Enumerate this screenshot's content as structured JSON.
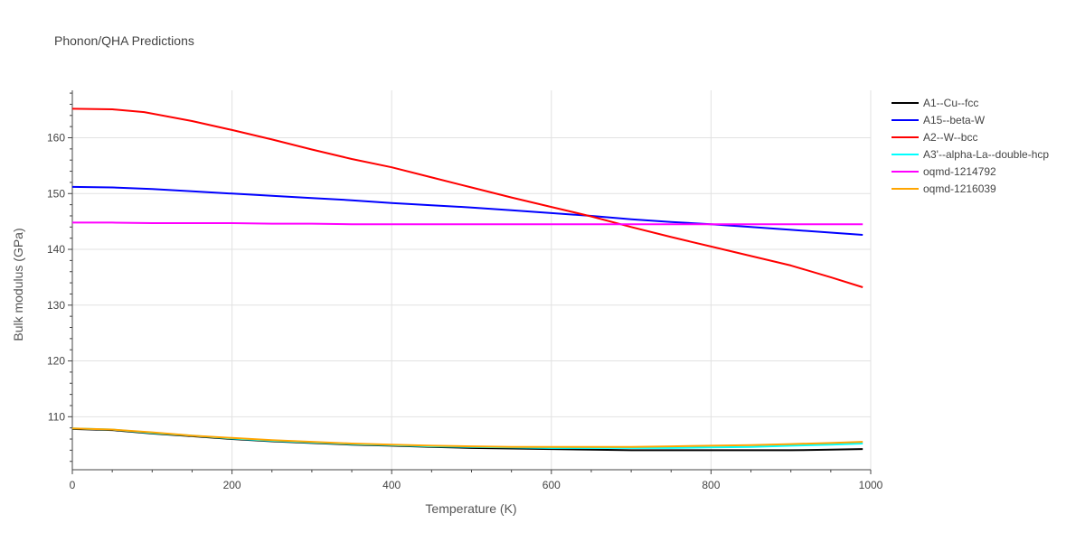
{
  "chart_data": {
    "type": "line",
    "title": "Phonon/QHA Predictions",
    "xlabel": "Temperature (K)",
    "ylabel": "Bulk modulus (GPa)",
    "xlim": [
      0,
      1000
    ],
    "ylim": [
      100.5,
      168.5
    ],
    "xticks": [
      0,
      200,
      400,
      600,
      800,
      1000
    ],
    "yticks": [
      110,
      120,
      130,
      140,
      150,
      160
    ],
    "grid": true,
    "legend_position": "top-right",
    "series": [
      {
        "name": "A1--Cu--fcc",
        "color": "#000000",
        "x": [
          0,
          50,
          100,
          150,
          200,
          250,
          300,
          350,
          400,
          450,
          500,
          550,
          600,
          650,
          700,
          750,
          800,
          850,
          900,
          950,
          990
        ],
        "y": [
          107.8,
          107.6,
          107.0,
          106.5,
          106.0,
          105.6,
          105.3,
          105.0,
          104.8,
          104.6,
          104.4,
          104.3,
          104.2,
          104.1,
          104.0,
          104.0,
          104.0,
          104.0,
          104.0,
          104.1,
          104.2
        ]
      },
      {
        "name": "A15--beta-W",
        "color": "#0000ff",
        "x": [
          0,
          50,
          100,
          150,
          200,
          250,
          300,
          350,
          400,
          450,
          500,
          550,
          600,
          650,
          700,
          750,
          800,
          850,
          900,
          950,
          990
        ],
        "y": [
          151.2,
          151.1,
          150.8,
          150.4,
          150.0,
          149.6,
          149.2,
          148.8,
          148.3,
          147.9,
          147.5,
          147.0,
          146.5,
          146.0,
          145.4,
          144.9,
          144.5,
          144.0,
          143.5,
          143.0,
          142.6
        ]
      },
      {
        "name": "A2--W--bcc",
        "color": "#ff0000",
        "x": [
          0,
          50,
          90,
          150,
          200,
          250,
          300,
          350,
          400,
          450,
          500,
          550,
          600,
          650,
          700,
          750,
          800,
          850,
          900,
          950,
          990
        ],
        "y": [
          165.2,
          165.1,
          164.6,
          163.0,
          161.4,
          159.7,
          157.9,
          156.2,
          154.7,
          152.9,
          151.1,
          149.3,
          147.6,
          145.9,
          144.0,
          142.2,
          140.5,
          138.8,
          137.1,
          135.0,
          133.2
        ]
      },
      {
        "name": "A3'--alpha-La--double-hcp",
        "color": "#00ffff",
        "x": [
          0,
          50,
          100,
          150,
          200,
          250,
          300,
          350,
          400,
          450,
          500,
          550,
          600,
          650,
          700,
          750,
          800,
          850,
          900,
          950,
          990
        ],
        "y": [
          107.9,
          107.7,
          107.1,
          106.6,
          106.1,
          105.7,
          105.4,
          105.1,
          104.9,
          104.7,
          104.6,
          104.5,
          104.4,
          104.4,
          104.4,
          104.4,
          104.5,
          104.6,
          104.8,
          105.0,
          105.2
        ]
      },
      {
        "name": "oqmd-1214792",
        "color": "#ff00ff",
        "x": [
          0,
          50,
          100,
          150,
          200,
          250,
          300,
          350,
          400,
          450,
          500,
          550,
          600,
          650,
          700,
          750,
          800,
          850,
          900,
          950,
          990
        ],
        "y": [
          144.8,
          144.8,
          144.7,
          144.7,
          144.7,
          144.6,
          144.6,
          144.5,
          144.5,
          144.5,
          144.5,
          144.5,
          144.5,
          144.5,
          144.5,
          144.5,
          144.5,
          144.5,
          144.5,
          144.5,
          144.5
        ]
      },
      {
        "name": "oqmd-1216039",
        "color": "#ffa500",
        "x": [
          0,
          50,
          100,
          150,
          200,
          250,
          300,
          350,
          400,
          450,
          500,
          550,
          600,
          650,
          700,
          750,
          800,
          850,
          900,
          950,
          990
        ],
        "y": [
          107.9,
          107.7,
          107.2,
          106.6,
          106.2,
          105.8,
          105.5,
          105.2,
          105.0,
          104.8,
          104.7,
          104.6,
          104.6,
          104.6,
          104.6,
          104.7,
          104.8,
          104.9,
          105.1,
          105.3,
          105.5
        ]
      }
    ]
  }
}
